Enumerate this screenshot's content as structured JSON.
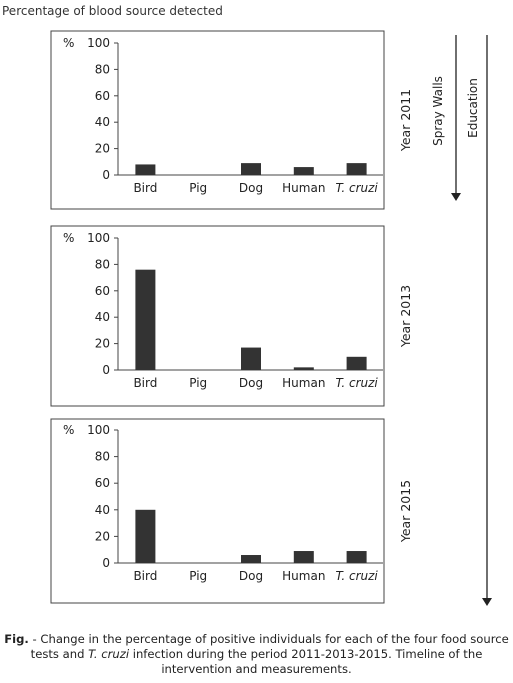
{
  "figure": {
    "header": "Percentage of blood source detected",
    "caption": {
      "label": "Fig.",
      "text_1": " - Change in the percentage of positive individuals for each of the four food source tests and ",
      "italic": "T. cruzi",
      "text_2": " infection during the period 2011-2013-2015. Timeline of the intervention and measurements."
    },
    "timeline": {
      "short_arrow_label": "Spray Walls",
      "long_arrow_label": "Education"
    }
  },
  "chart_data": [
    {
      "type": "bar",
      "year_label": "Year 2011",
      "ylabel": "%",
      "ylim": [
        0,
        100
      ],
      "yticks": [
        "0",
        "20",
        "40",
        "60",
        "80",
        "100"
      ],
      "categories": [
        "Bird",
        "Pig",
        "Dog",
        "Human",
        "T. cruzi"
      ],
      "values": [
        8,
        0,
        9,
        6,
        9
      ]
    },
    {
      "type": "bar",
      "year_label": "Year 2013",
      "ylabel": "%",
      "ylim": [
        0,
        100
      ],
      "yticks": [
        "0",
        "20",
        "40",
        "60",
        "80",
        "100"
      ],
      "categories": [
        "Bird",
        "Pig",
        "Dog",
        "Human",
        "T. cruzi"
      ],
      "values": [
        76,
        0,
        17,
        2,
        10
      ]
    },
    {
      "type": "bar",
      "year_label": "Year 2015",
      "ylabel": "%",
      "ylim": [
        0,
        100
      ],
      "yticks": [
        "0",
        "20",
        "40",
        "60",
        "80",
        "100"
      ],
      "categories": [
        "Bird",
        "Pig",
        "Dog",
        "Human",
        "T. cruzi"
      ],
      "values": [
        40,
        0,
        6,
        9,
        9
      ]
    }
  ],
  "colors": {
    "bar": "#333333",
    "frame": "#444444",
    "text": "#222222"
  }
}
